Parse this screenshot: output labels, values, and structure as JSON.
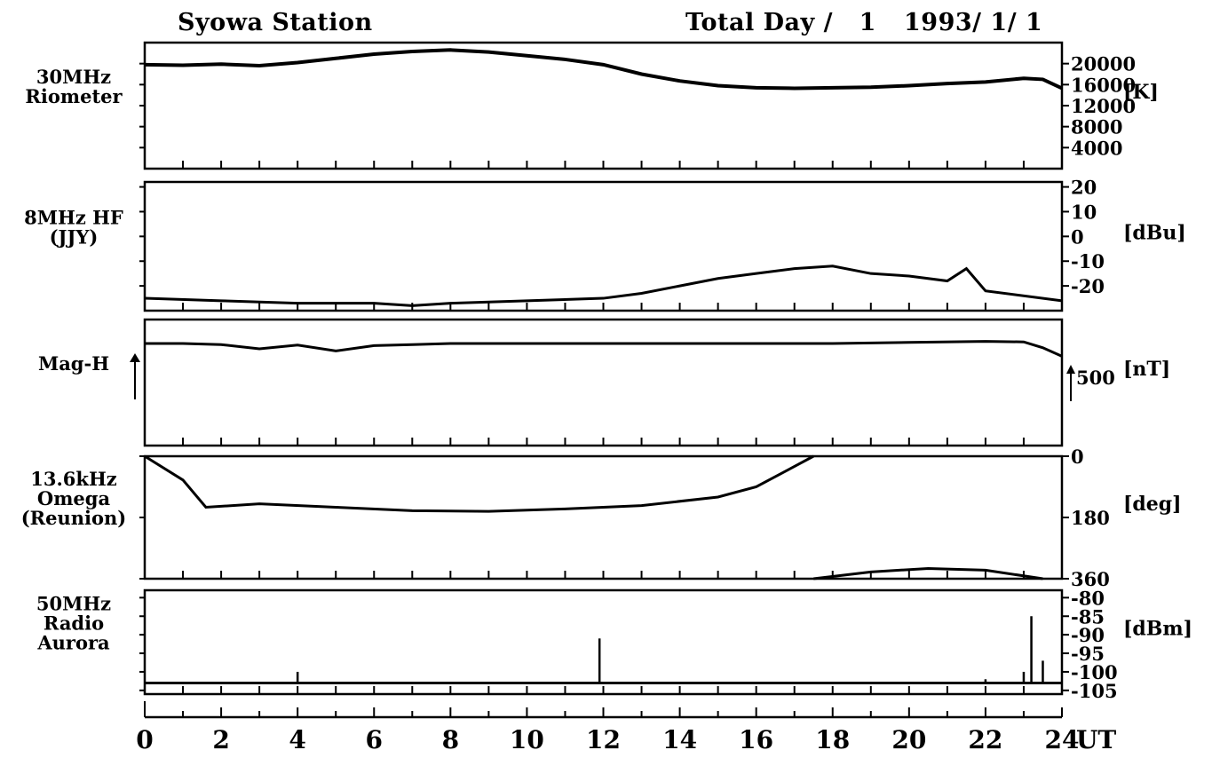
{
  "header": {
    "station": "Syowa Station",
    "total_day": "Total Day /   1",
    "date": "1993/ 1/ 1"
  },
  "chart_data": [
    {
      "type": "line",
      "id": "riometer",
      "label_lines": [
        "30MHz",
        "Riometer"
      ],
      "unit": "[K]",
      "ylim": [
        0,
        24000
      ],
      "ticks": [
        {
          "v": 20000,
          "label": "20000"
        },
        {
          "v": 16000,
          "label": "16000"
        },
        {
          "v": 12000,
          "label": "12000"
        },
        {
          "v": 8000,
          "label": "8000"
        },
        {
          "v": 4000,
          "label": "4000"
        }
      ],
      "x": [
        0,
        1,
        2,
        3,
        4,
        5,
        6,
        7,
        8,
        9,
        10,
        11,
        12,
        13,
        14,
        15,
        16,
        17,
        18,
        19,
        20,
        21,
        22,
        23,
        23.5,
        24
      ],
      "values": [
        19800,
        19700,
        19900,
        19600,
        20200,
        21000,
        21800,
        22300,
        22600,
        22200,
        21500,
        20800,
        19800,
        18000,
        16700,
        15800,
        15400,
        15300,
        15400,
        15500,
        15800,
        16200,
        16500,
        17200,
        17000,
        15300
      ]
    },
    {
      "type": "line",
      "id": "hf8mhz",
      "label_lines": [
        "8MHz HF",
        "(JJY)"
      ],
      "unit": "[dBu]",
      "ylim": [
        -30,
        22
      ],
      "ticks": [
        {
          "v": 20,
          "label": "20"
        },
        {
          "v": 10,
          "label": "10"
        },
        {
          "v": 0,
          "label": "0"
        },
        {
          "v": -10,
          "label": "-10"
        },
        {
          "v": -20,
          "label": "-20"
        }
      ],
      "x": [
        0,
        2,
        4,
        6,
        7,
        8,
        10,
        12,
        13,
        14,
        15,
        16,
        17,
        18,
        19,
        20,
        21,
        21.5,
        22,
        24
      ],
      "values": [
        -25,
        -26,
        -27,
        -27,
        -28,
        -27,
        -26,
        -25,
        -23,
        -20,
        -17,
        -15,
        -13,
        -12,
        -15,
        -16,
        -18,
        -13,
        -22,
        -26
      ]
    },
    {
      "type": "line",
      "id": "magh",
      "label_lines": [
        "Mag-H"
      ],
      "unit": "[nT]",
      "scale_label": "500",
      "x": [
        0,
        1,
        2,
        3,
        4,
        5,
        6,
        7,
        8,
        10,
        12,
        14,
        16,
        18,
        20,
        22,
        23,
        23.5,
        24
      ],
      "values": [
        0,
        0,
        -10,
        -50,
        -15,
        -70,
        -20,
        -10,
        0,
        0,
        0,
        0,
        0,
        0,
        10,
        20,
        15,
        -40,
        -120
      ]
    },
    {
      "type": "line",
      "id": "omega",
      "label_lines": [
        "13.6kHz",
        "Omega",
        "(Reunion)"
      ],
      "unit": "[deg]",
      "ylim": [
        0,
        360
      ],
      "inverted": true,
      "ticks": [
        {
          "v": 0,
          "label": "0"
        },
        {
          "v": 180,
          "label": "180"
        },
        {
          "v": 360,
          "label": "360"
        }
      ],
      "x": [
        0,
        1,
        1.6,
        3,
        5,
        7,
        9,
        11,
        13,
        15,
        16,
        17.5
      ],
      "values": [
        0,
        70,
        150,
        140,
        150,
        160,
        162,
        155,
        145,
        120,
        90,
        0
      ],
      "x2": [
        17.5,
        19,
        20.5,
        22,
        23.5
      ],
      "values2": [
        360,
        340,
        330,
        335,
        360
      ]
    },
    {
      "type": "line",
      "id": "radioaurora",
      "label_lines": [
        "50MHz",
        "Radio",
        "Aurora"
      ],
      "unit": "[dBm]",
      "ylim": [
        -106,
        -78
      ],
      "ticks": [
        {
          "v": -80,
          "label": "-80"
        },
        {
          "v": -85,
          "label": "-85"
        },
        {
          "v": -90,
          "label": "-90"
        },
        {
          "v": -95,
          "label": "-95"
        },
        {
          "v": -100,
          "label": "-100"
        },
        {
          "v": -105,
          "label": "-105"
        }
      ],
      "baseline": -103,
      "spikes": [
        {
          "x": 4,
          "v": -100
        },
        {
          "x": 11.9,
          "v": -91
        },
        {
          "x": 22,
          "v": -102
        },
        {
          "x": 23,
          "v": -100
        },
        {
          "x": 23.2,
          "v": -85
        },
        {
          "x": 23.5,
          "v": -97
        }
      ]
    }
  ],
  "x_axis": {
    "xlim": [
      0,
      24
    ],
    "ticks": [
      "0",
      "2",
      "4",
      "6",
      "8",
      "10",
      "12",
      "14",
      "16",
      "18",
      "20",
      "22",
      "24"
    ],
    "unit": "UT"
  }
}
